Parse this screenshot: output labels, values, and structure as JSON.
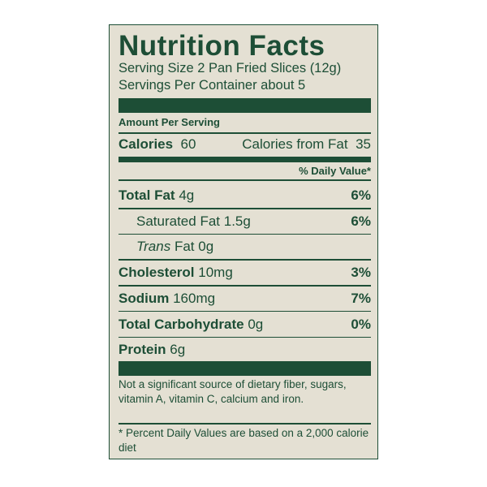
{
  "header": {
    "title": "Nutrition Facts",
    "serving_size": "Serving Size 2 Pan Fried Slices (12g)",
    "servings_per_container": "Servings Per Container about 5"
  },
  "amount_per_serving": "Amount Per Serving",
  "calories": {
    "label": "Calories",
    "value": 60,
    "from_fat_label": "Calories from Fat",
    "from_fat_value": 35
  },
  "daily_value_header": "% Daily Value*",
  "nutrients": [
    {
      "name": "Total Fat",
      "amount": "4g",
      "daily_value": "6%"
    },
    {
      "name": "Saturated Fat",
      "amount": "1.5g",
      "daily_value": "6%"
    },
    {
      "name_italic": "Trans",
      "name": "Fat",
      "amount": "0g"
    },
    {
      "name": "Cholesterol",
      "amount": "10mg",
      "daily_value": "3%"
    },
    {
      "name": "Sodium",
      "amount": "160mg",
      "daily_value": "7%"
    },
    {
      "name": "Total Carbohydrate",
      "amount": "0g",
      "daily_value": "0%"
    },
    {
      "name": "Protein",
      "amount": "6g"
    }
  ],
  "note": "Not a significant source of dietary fiber, sugars, vitamin A, vitamin C, calcium and iron.",
  "footnote": "* Percent Daily Values are based on a 2,000 calorie diet"
}
